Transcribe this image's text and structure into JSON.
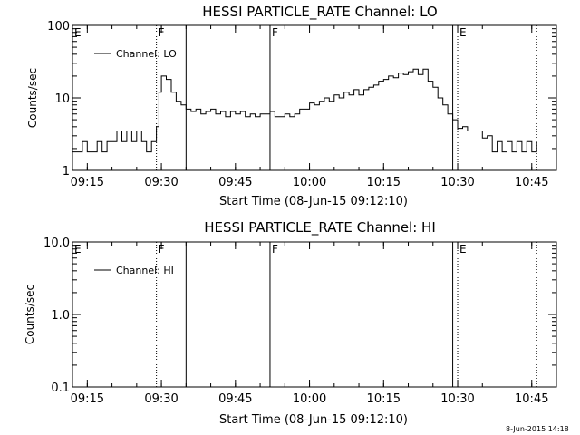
{
  "stamp": "8-Jun-2015 14:18",
  "chart_data": [
    {
      "type": "line",
      "title": "HESSI PARTICLE_RATE Channel: LO",
      "xlabel": "Start Time (08-Jun-15 09:12:10)",
      "ylabel": "Counts/sec",
      "yscale": "log",
      "ylim": [
        1,
        100
      ],
      "xlim": [
        "09:12",
        "10:50"
      ],
      "yticks": [
        1,
        10,
        100
      ],
      "ytick_labels": [
        "1",
        "10",
        "100"
      ],
      "xticks": [
        "09:15",
        "09:30",
        "09:45",
        "10:00",
        "10:15",
        "10:30",
        "10:45"
      ],
      "legend": {
        "position": "top-left",
        "entries": [
          "Channel: LO"
        ]
      },
      "grid": false,
      "markers": [
        {
          "label": "E",
          "time": "09:12",
          "style": "none"
        },
        {
          "label": "F",
          "time": "09:29",
          "style": "dotted"
        },
        {
          "label": "",
          "time": "09:35",
          "style": "solid"
        },
        {
          "label": "F",
          "time": "09:52",
          "style": "solid"
        },
        {
          "label": "",
          "time": "10:29",
          "style": "solid"
        },
        {
          "label": "E",
          "time": "10:30",
          "style": "dotted"
        },
        {
          "label": "",
          "time": "10:46",
          "style": "dotted"
        }
      ],
      "series": [
        {
          "name": "Channel: LO",
          "x": [
            "09:12",
            "09:13",
            "09:14",
            "09:15",
            "09:16",
            "09:17",
            "09:18",
            "09:19",
            "09:20",
            "09:21",
            "09:22",
            "09:23",
            "09:24",
            "09:25",
            "09:26",
            "09:27",
            "09:28",
            "09:29",
            "09:29.5",
            "09:30",
            "09:31",
            "09:32",
            "09:33",
            "09:34",
            "09:35",
            "09:36",
            "09:37",
            "09:38",
            "09:39",
            "09:40",
            "09:41",
            "09:42",
            "09:43",
            "09:44",
            "09:45",
            "09:46",
            "09:47",
            "09:48",
            "09:49",
            "09:50",
            "09:51",
            "09:52",
            "09:53",
            "09:54",
            "09:55",
            "09:56",
            "09:57",
            "09:58",
            "09:59",
            "10:00",
            "10:01",
            "10:02",
            "10:03",
            "10:04",
            "10:05",
            "10:06",
            "10:07",
            "10:08",
            "10:09",
            "10:10",
            "10:11",
            "10:12",
            "10:13",
            "10:14",
            "10:15",
            "10:16",
            "10:17",
            "10:18",
            "10:19",
            "10:20",
            "10:21",
            "10:22",
            "10:23",
            "10:24",
            "10:25",
            "10:26",
            "10:27",
            "10:28",
            "10:29",
            "10:30",
            "10:31",
            "10:32",
            "10:33",
            "10:34",
            "10:35",
            "10:36",
            "10:37",
            "10:38",
            "10:39",
            "10:40",
            "10:41",
            "10:42",
            "10:43",
            "10:44",
            "10:45",
            "10:46"
          ],
          "y": [
            1.8,
            1.8,
            2.5,
            1.8,
            1.8,
            2.5,
            1.8,
            2.5,
            2.5,
            3.5,
            2.5,
            3.5,
            2.5,
            3.5,
            2.5,
            1.8,
            2.5,
            4.0,
            12.0,
            20.0,
            18.0,
            12.0,
            9.0,
            8.0,
            7.0,
            6.5,
            7.0,
            6.0,
            6.5,
            7.0,
            6.0,
            6.5,
            5.5,
            6.5,
            6.0,
            6.5,
            5.5,
            6.0,
            5.5,
            6.0,
            6.0,
            6.5,
            5.5,
            5.5,
            6.0,
            5.5,
            6.0,
            7.0,
            7.0,
            8.5,
            8.0,
            9.0,
            10.0,
            9.0,
            11.0,
            10.0,
            12.0,
            11.0,
            13.0,
            11.0,
            13.0,
            14.0,
            15.0,
            17.0,
            18.0,
            20.0,
            19.0,
            22.0,
            21.0,
            23.0,
            25.0,
            21.0,
            25.0,
            17.0,
            14.0,
            10.0,
            8.0,
            6.0,
            5.0,
            3.8,
            4.0,
            3.5,
            3.5,
            3.5,
            2.8,
            3.0,
            1.8,
            2.5,
            1.8,
            2.5,
            1.8,
            2.5,
            1.8,
            2.5,
            1.8,
            2.5
          ]
        }
      ]
    },
    {
      "type": "line",
      "title": "HESSI PARTICLE_RATE Channel: HI",
      "xlabel": "Start Time (08-Jun-15 09:12:10)",
      "ylabel": "Counts/sec",
      "yscale": "log",
      "ylim": [
        0.1,
        10
      ],
      "xlim": [
        "09:12",
        "10:50"
      ],
      "yticks": [
        0.1,
        1.0,
        10.0
      ],
      "ytick_labels": [
        "0.1",
        "1.0",
        "10.0"
      ],
      "xticks": [
        "09:15",
        "09:30",
        "09:45",
        "10:00",
        "10:15",
        "10:30",
        "10:45"
      ],
      "legend": {
        "position": "top-left",
        "entries": [
          "Channel: HI"
        ]
      },
      "grid": false,
      "markers": [
        {
          "label": "E",
          "time": "09:12",
          "style": "none"
        },
        {
          "label": "F",
          "time": "09:29",
          "style": "dotted"
        },
        {
          "label": "",
          "time": "09:35",
          "style": "solid"
        },
        {
          "label": "F",
          "time": "09:52",
          "style": "solid"
        },
        {
          "label": "",
          "time": "10:29",
          "style": "solid"
        },
        {
          "label": "E",
          "time": "10:30",
          "style": "dotted"
        },
        {
          "label": "",
          "time": "10:46",
          "style": "dotted"
        }
      ],
      "series": [
        {
          "name": "Channel: HI",
          "x": [],
          "y": []
        }
      ]
    }
  ]
}
